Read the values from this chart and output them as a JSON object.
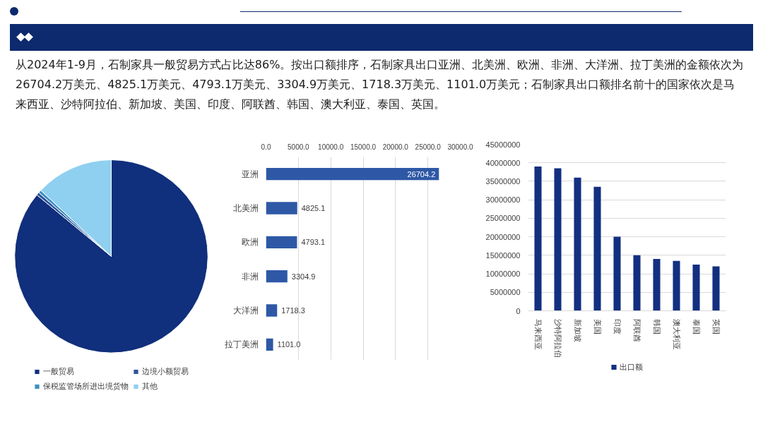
{
  "chart_data": [
    {
      "type": "other",
      "annotations": [
        "从2024年1-9月，石制家具一般贸易方式占比达86%。按出口额排序，石制家具出口亚洲、北美洲、欧洲、非洲、大洋洲、拉丁美洲的金额依次为26704.2万美元、4825.1万美元、4793.1万美元、3304.9万美元、1718.3万美元、1101.0万美元；石制家具出口额排名前十的国家依次是马来西亚、沙特阿拉伯、新加坡、美国、印度、阿联酋、韩国、澳大利亚、泰国、英国。"
      ]
    },
    {
      "type": "pie",
      "categories": [
        "一般贸易",
        "边境小额贸易",
        "保税监管场所进出境货物",
        "其他"
      ],
      "values": [
        86,
        0.5,
        0.5,
        13
      ],
      "colors": [
        "#102f7c",
        "#2f5597",
        "#3f8fc4",
        "#8fd0f0"
      ],
      "legend": "bottom"
    },
    {
      "type": "bar",
      "orientation": "horizontal",
      "categories": [
        "亚洲",
        "北美洲",
        "欧洲",
        "非洲",
        "大洋洲",
        "拉丁美洲"
      ],
      "values": [
        26704.2,
        4825.1,
        4793.1,
        3304.9,
        1718.3,
        1101
      ],
      "value_labels": [
        "26704.2",
        "4825.1",
        "4793.1",
        "3304.9",
        "1718.3",
        "1101.0"
      ],
      "color": "#2e58a6",
      "xlim": [
        0,
        30000
      ],
      "xticks": [
        {
          "value": 0,
          "label": "0.0"
        },
        {
          "value": 5000,
          "label": "5000.0"
        },
        {
          "value": 10000,
          "label": "10000.0"
        },
        {
          "value": 15000,
          "label": "15000.0"
        },
        {
          "value": 20000,
          "label": "20000.0"
        },
        {
          "value": 25000,
          "label": "25000.0"
        },
        {
          "value": 30000,
          "label": "30000.0"
        }
      ],
      "grid": "x"
    },
    {
      "type": "bar",
      "categories": [
        "马来西亚",
        "沙特阿拉伯",
        "新加坡",
        "美国",
        "印度",
        "阿联酋",
        "韩国",
        "澳大利亚",
        "泰国",
        "英国"
      ],
      "series": [
        {
          "name": "出口额",
          "color": "#132f80",
          "values": [
            39000000,
            38500000,
            36000000,
            33500000,
            20000000,
            15000000,
            14000000,
            13500000,
            12500000,
            12000000
          ]
        }
      ],
      "ylim": [
        0,
        45000000
      ],
      "yticks": [
        0,
        5000000,
        10000000,
        15000000,
        20000000,
        25000000,
        30000000,
        35000000,
        40000000,
        45000000
      ],
      "grid": "y",
      "legend": "bottom"
    }
  ]
}
